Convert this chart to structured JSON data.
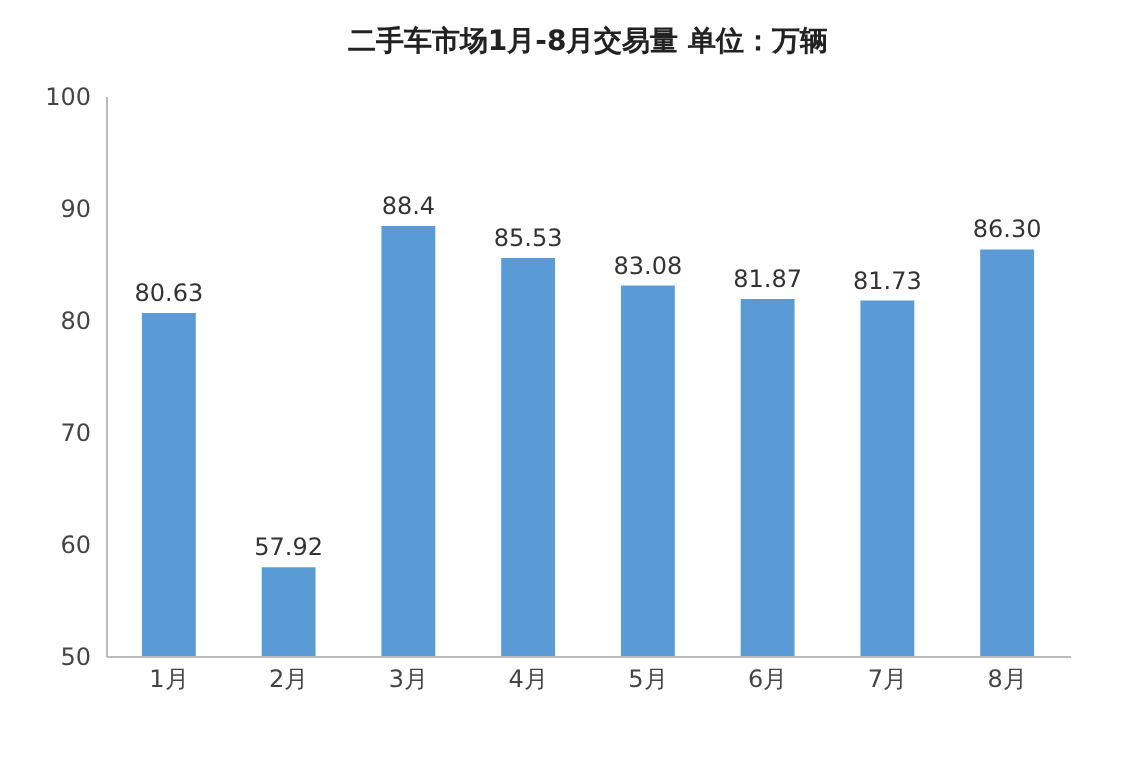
{
  "chart_data": {
    "type": "bar",
    "title": "二手车市场1月-8月交易量     单位：万辆",
    "categories": [
      "1月",
      "2月",
      "3月",
      "4月",
      "5月",
      "6月",
      "7月",
      "8月"
    ],
    "values": [
      80.63,
      57.92,
      88.4,
      85.53,
      83.08,
      81.87,
      81.73,
      86.3
    ],
    "value_labels": [
      "80.63",
      "57.92",
      "88.4",
      "85.53",
      "83.08",
      "81.87",
      "81.73",
      "86.30"
    ],
    "color": "#5b9bd5",
    "ylim": [
      50,
      100
    ],
    "yticks": [
      50,
      60,
      70,
      80,
      90,
      100
    ],
    "grid": false
  }
}
